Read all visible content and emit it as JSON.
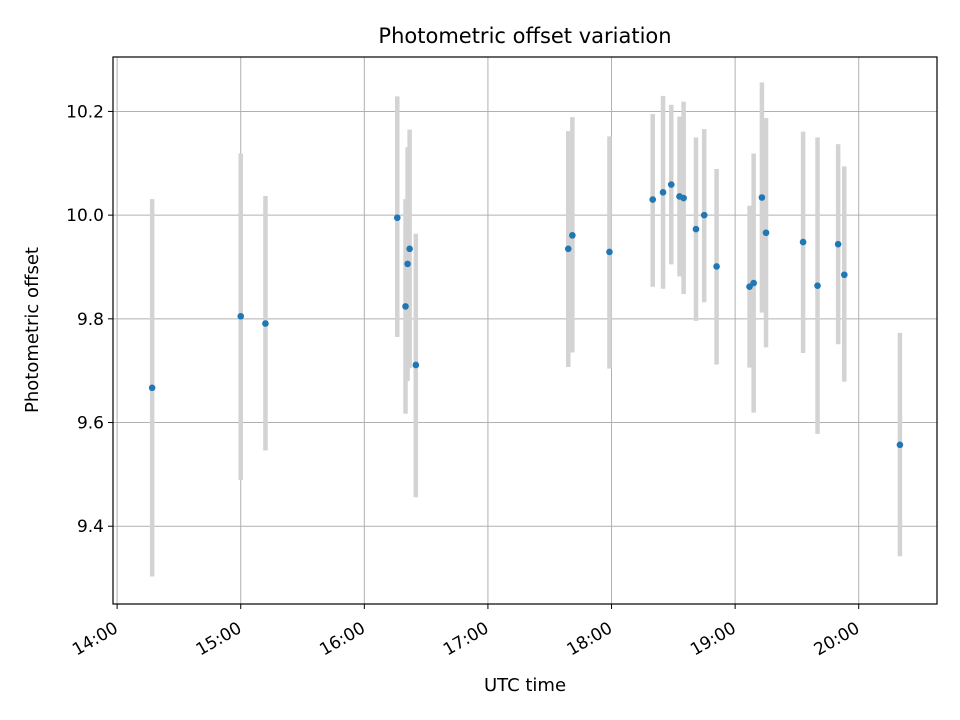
{
  "chart_data": {
    "type": "scatter",
    "title": "Photometric offset variation",
    "xlabel": "UTC time",
    "ylabel": "Photometric offset",
    "x_unit": "UTC hour of day (HH:MM)",
    "xlim": [
      "13:58",
      "20:38"
    ],
    "ylim": [
      9.25,
      10.305
    ],
    "x_ticks": [
      "14:00",
      "15:00",
      "16:00",
      "17:00",
      "18:00",
      "19:00",
      "20:00"
    ],
    "y_ticks": [
      9.4,
      9.6,
      9.8,
      10.0,
      10.2
    ],
    "grid": true,
    "point_color": "#1f77b4",
    "errorbar_color": "#d3d3d3",
    "points": [
      {
        "t": "14:17",
        "y": 9.667,
        "lo": 9.303,
        "hi": 10.031
      },
      {
        "t": "15:00",
        "y": 9.805,
        "lo": 9.489,
        "hi": 10.119
      },
      {
        "t": "15:12",
        "y": 9.791,
        "lo": 9.546,
        "hi": 10.037
      },
      {
        "t": "16:16",
        "y": 9.995,
        "lo": 9.765,
        "hi": 10.229
      },
      {
        "t": "16:20",
        "y": 9.824,
        "lo": 9.617,
        "hi": 10.031
      },
      {
        "t": "16:21",
        "y": 9.906,
        "lo": 9.68,
        "hi": 10.131
      },
      {
        "t": "16:22",
        "y": 9.935,
        "lo": 9.705,
        "hi": 10.165
      },
      {
        "t": "16:25",
        "y": 9.711,
        "lo": 9.456,
        "hi": 9.964
      },
      {
        "t": "17:39",
        "y": 9.935,
        "lo": 9.707,
        "hi": 10.162
      },
      {
        "t": "17:41",
        "y": 9.961,
        "lo": 9.735,
        "hi": 10.189
      },
      {
        "t": "17:59",
        "y": 9.929,
        "lo": 9.704,
        "hi": 10.152
      },
      {
        "t": "18:20",
        "y": 10.03,
        "lo": 9.862,
        "hi": 10.195
      },
      {
        "t": "18:25",
        "y": 10.044,
        "lo": 9.858,
        "hi": 10.23
      },
      {
        "t": "18:29",
        "y": 10.059,
        "lo": 9.905,
        "hi": 10.213
      },
      {
        "t": "18:33",
        "y": 10.036,
        "lo": 9.882,
        "hi": 10.19
      },
      {
        "t": "18:35",
        "y": 10.033,
        "lo": 9.848,
        "hi": 10.219
      },
      {
        "t": "18:41",
        "y": 9.973,
        "lo": 9.796,
        "hi": 10.15
      },
      {
        "t": "18:45",
        "y": 10.0,
        "lo": 9.832,
        "hi": 10.166
      },
      {
        "t": "18:51",
        "y": 9.901,
        "lo": 9.712,
        "hi": 10.089
      },
      {
        "t": "19:07",
        "y": 9.862,
        "lo": 9.706,
        "hi": 10.018
      },
      {
        "t": "19:09",
        "y": 9.869,
        "lo": 9.619,
        "hi": 10.119
      },
      {
        "t": "19:13",
        "y": 10.034,
        "lo": 9.812,
        "hi": 10.256
      },
      {
        "t": "19:15",
        "y": 9.966,
        "lo": 9.745,
        "hi": 10.187
      },
      {
        "t": "19:33",
        "y": 9.948,
        "lo": 9.734,
        "hi": 10.161
      },
      {
        "t": "19:40",
        "y": 9.864,
        "lo": 9.578,
        "hi": 10.15
      },
      {
        "t": "19:50",
        "y": 9.944,
        "lo": 9.751,
        "hi": 10.137
      },
      {
        "t": "19:53",
        "y": 9.885,
        "lo": 9.679,
        "hi": 10.094
      },
      {
        "t": "20:20",
        "y": 9.557,
        "lo": 9.342,
        "hi": 9.773
      }
    ]
  }
}
